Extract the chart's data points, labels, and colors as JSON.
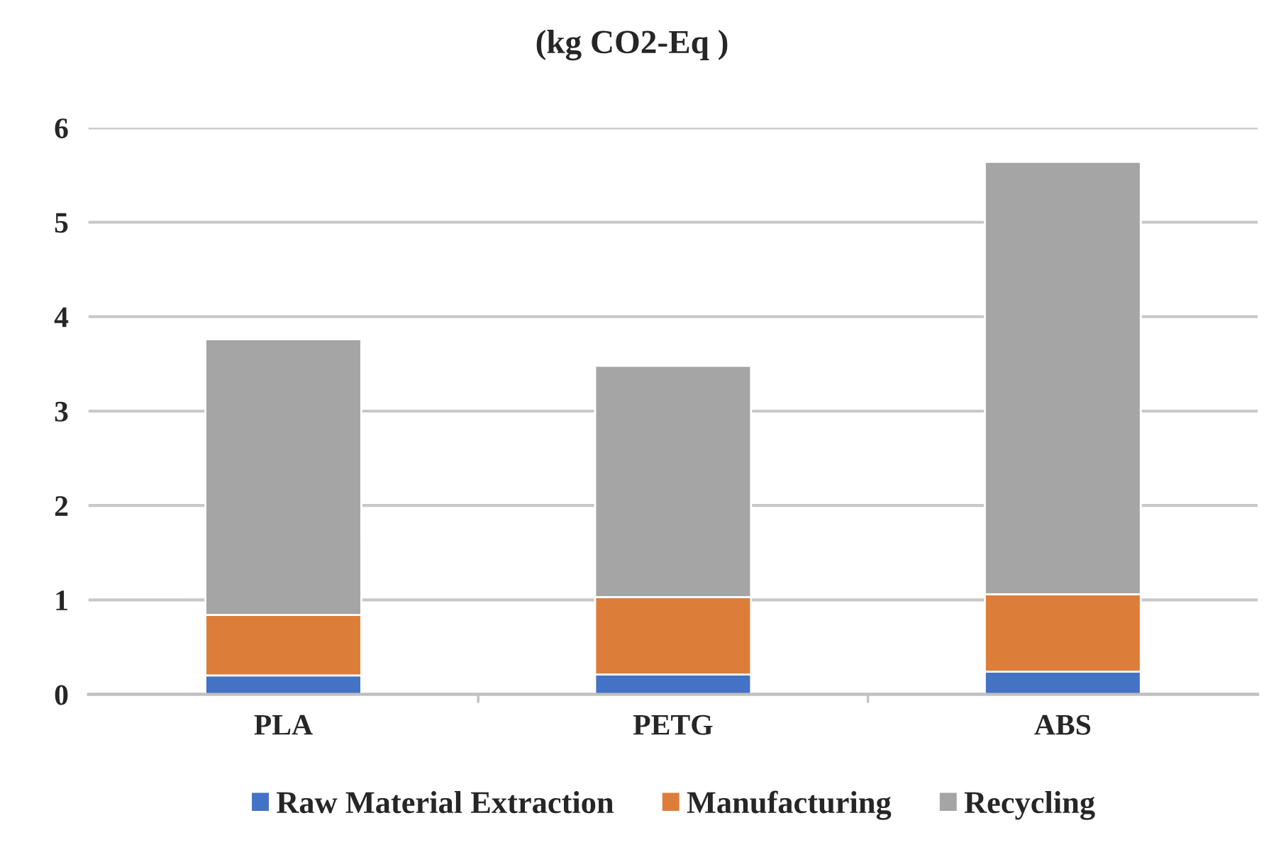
{
  "chart_data": {
    "type": "bar",
    "title": "(kg CO2-Eq )",
    "stacked": true,
    "categories": [
      "PLA",
      "PETG",
      "ABS"
    ],
    "series": [
      {
        "name": "Raw Material Extraction",
        "color": "#4472c4",
        "values": [
          0.2,
          0.21,
          0.24
        ]
      },
      {
        "name": "Manufacturing",
        "color": "#dd7d3a",
        "values": [
          0.64,
          0.82,
          0.82
        ]
      },
      {
        "name": "Recycling",
        "color": "#a5a5a5",
        "values": [
          2.92,
          2.45,
          4.58
        ]
      }
    ],
    "ylim": [
      0,
      6
    ],
    "yticks": [
      0,
      1,
      2,
      3,
      4,
      5,
      6
    ],
    "grid": "y",
    "legend": "bottom"
  }
}
